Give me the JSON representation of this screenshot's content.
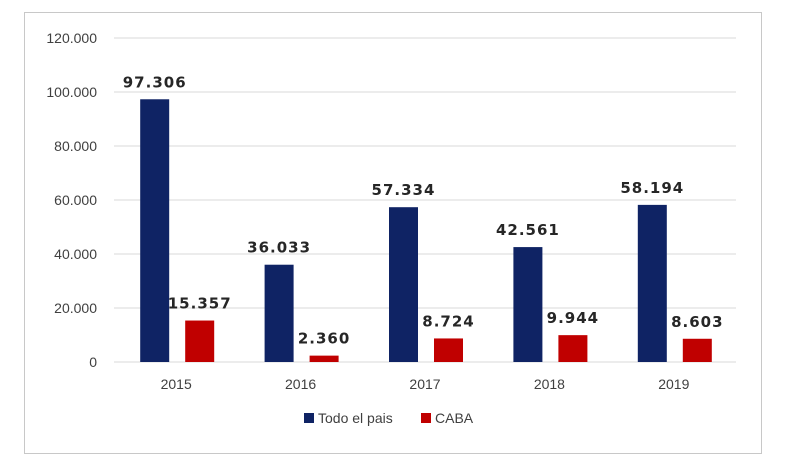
{
  "chart_data": {
    "type": "bar",
    "categories": [
      "2015",
      "2016",
      "2017",
      "2018",
      "2019"
    ],
    "series": [
      {
        "name": "Todo el pais",
        "color": "#0f2364",
        "values": [
          97306,
          36033,
          57334,
          42561,
          58194
        ],
        "labels": [
          "97.306",
          "36.033",
          "57.334",
          "42.561",
          "58.194"
        ]
      },
      {
        "name": "CABA",
        "color": "#c00000",
        "values": [
          15357,
          2360,
          8724,
          9944,
          8603
        ],
        "labels": [
          "15.357",
          "2.360",
          "8.724",
          "9.944",
          "8.603"
        ]
      }
    ],
    "ylim": [
      0,
      120000
    ],
    "yticks": [
      0,
      20000,
      40000,
      60000,
      80000,
      100000,
      120000
    ],
    "ytick_labels": [
      "0",
      "20.000",
      "40.000",
      "60.000",
      "80.000",
      "100.000",
      "120.000"
    ],
    "grid": true,
    "gridline_color": "#d9d9d9",
    "legend_position": "bottom"
  }
}
